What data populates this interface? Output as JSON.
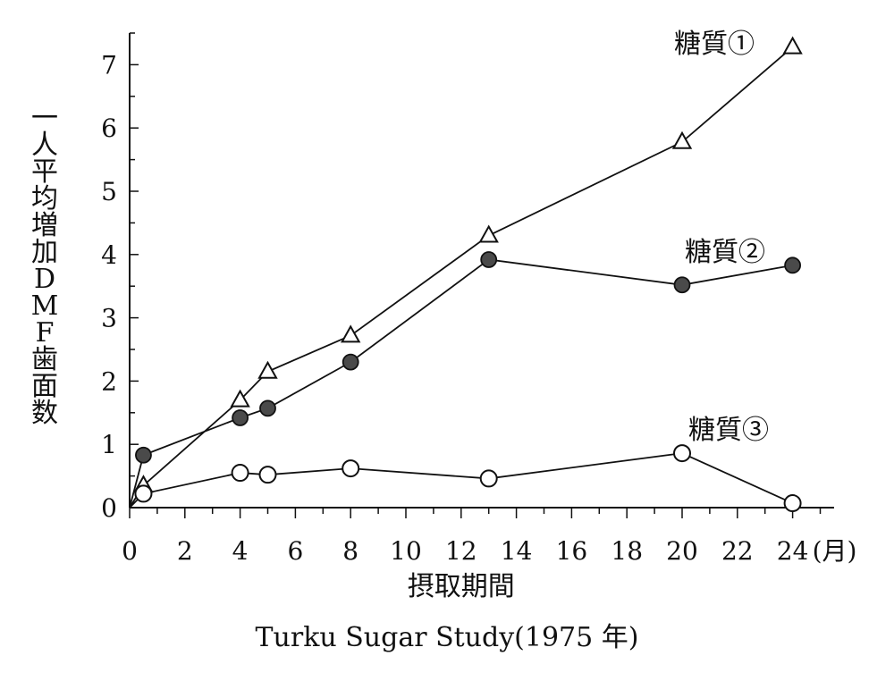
{
  "chart_data": {
    "type": "line",
    "x_tick_labels": [
      "0",
      "2",
      "4",
      "6",
      "8",
      "10",
      "12",
      "14",
      "16",
      "18",
      "20",
      "22",
      "24"
    ],
    "x_unit": "(月)",
    "xlabel": "摂取期間",
    "ylabel_chars": [
      "一",
      "人",
      "平",
      "均",
      "増",
      "加",
      "D",
      "M",
      "F",
      "歯",
      "面",
      "数"
    ],
    "y_tick_labels": [
      "0",
      "1",
      "2",
      "3",
      "4",
      "5",
      "6",
      "7"
    ],
    "xlim": [
      0,
      25.5
    ],
    "ylim": [
      0,
      7.5
    ],
    "caption": "Turku Sugar Study(1975 年)",
    "series": [
      {
        "name": "糖質①",
        "marker": "triangle-open",
        "points": [
          [
            0,
            0
          ],
          [
            0.5,
            0.35
          ],
          [
            4,
            1.7
          ],
          [
            5,
            2.15
          ],
          [
            8,
            2.72
          ],
          [
            13,
            4.3
          ],
          [
            20,
            5.78
          ],
          [
            24,
            7.28
          ]
        ]
      },
      {
        "name": "糖質②",
        "marker": "circle-filled",
        "points": [
          [
            0,
            0
          ],
          [
            0.5,
            0.83
          ],
          [
            4,
            1.42
          ],
          [
            5,
            1.57
          ],
          [
            8,
            2.3
          ],
          [
            13,
            3.92
          ],
          [
            20,
            3.52
          ],
          [
            24,
            3.83
          ]
        ]
      },
      {
        "name": "糖質③",
        "marker": "circle-open",
        "points": [
          [
            0,
            0
          ],
          [
            0.5,
            0.22
          ],
          [
            4,
            0.55
          ],
          [
            5,
            0.52
          ],
          [
            8,
            0.62
          ],
          [
            13,
            0.46
          ],
          [
            20,
            0.86
          ],
          [
            24,
            0.07
          ]
        ]
      }
    ],
    "grid": false,
    "legend": "inline labels at end of each series"
  }
}
